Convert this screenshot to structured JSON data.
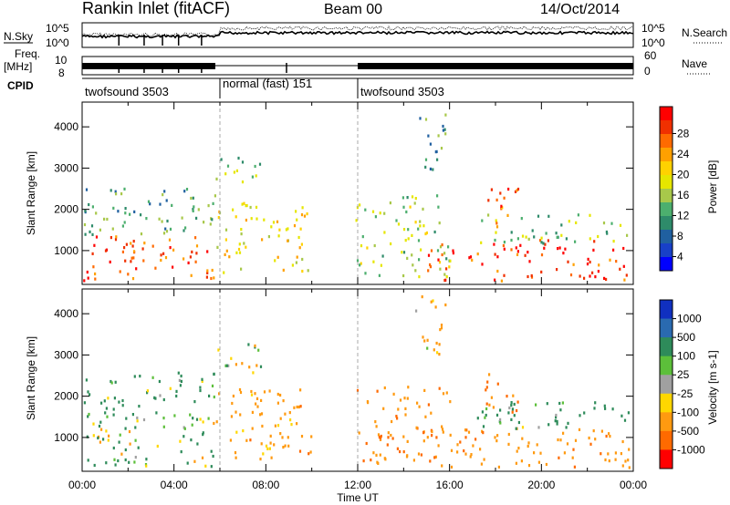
{
  "header": {
    "title": "Rankin Inlet (fitACF)",
    "beam": "Beam 00",
    "date": "14/Oct/2014"
  },
  "status_panel": {
    "left_labels": {
      "nsky": "N.Sky",
      "freq": "Freq.",
      "mhz": "[MHz]",
      "cpid": "CPID"
    },
    "right_labels": {
      "nsearch": "N.Search",
      "nave": "Nave"
    },
    "noise_ticks": [
      "10^5",
      "10^0"
    ],
    "freq_ticks": [
      "10",
      "8"
    ],
    "nave_ticks": [
      "60",
      "0"
    ],
    "noise_right_ticks": [
      "10^5",
      "10^0"
    ],
    "cpid_segments": [
      {
        "label": "twofsound 3503",
        "start": 0,
        "end": 6
      },
      {
        "label": "normal (fast) 151",
        "start": 6,
        "end": 12
      },
      {
        "label": "twofsound 3503",
        "start": 12,
        "end": 24
      }
    ]
  },
  "x_axis": {
    "label": "Time UT",
    "ticks": [
      "00:00",
      "04:00",
      "08:00",
      "12:00",
      "16:00",
      "20:00",
      "00:00"
    ]
  },
  "chart_data": [
    {
      "type": "heatmap",
      "title": "",
      "xlabel": "Time UT",
      "ylabel": "Slant Range [km]",
      "xlim": [
        0,
        24
      ],
      "ylim": [
        180,
        4600
      ],
      "yticks": [
        "1000",
        "2000",
        "3000",
        "4000"
      ],
      "colorbar": {
        "label": "Power [dB]",
        "ticks": [
          "28",
          "24",
          "20",
          "16",
          "12",
          "8",
          "4"
        ],
        "colors": [
          "#ff0000",
          "#f03000",
          "#ff6a00",
          "#ffa000",
          "#ffd200",
          "#e6e600",
          "#a8c84a",
          "#4caf6e",
          "#2e8b6a",
          "#2060a0",
          "#1840c8",
          "#0000ff"
        ]
      },
      "regions": [
        {
          "t0": 0.0,
          "t1": 5.8,
          "r0": 300,
          "r1": 1400,
          "level": 26
        },
        {
          "t0": 0.0,
          "t1": 5.8,
          "r0": 1400,
          "r1": 2600,
          "level": 10
        },
        {
          "t0": 5.8,
          "t1": 10.0,
          "r0": 500,
          "r1": 2200,
          "level": 18
        },
        {
          "t0": 5.8,
          "t1": 7.8,
          "r0": 2600,
          "r1": 3300,
          "level": 12
        },
        {
          "t0": 11.9,
          "t1": 16.0,
          "r0": 400,
          "r1": 2400,
          "level": 14
        },
        {
          "t0": 14.5,
          "t1": 15.8,
          "r0": 3000,
          "r1": 4500,
          "level": 10
        },
        {
          "t0": 15.0,
          "t1": 23.8,
          "r0": 300,
          "r1": 1300,
          "level": 27
        },
        {
          "t0": 17.0,
          "t1": 23.8,
          "r0": 1200,
          "r1": 1900,
          "level": 12
        },
        {
          "t0": 17.5,
          "t1": 19.0,
          "r0": 1600,
          "r1": 2600,
          "level": 25
        }
      ]
    },
    {
      "type": "heatmap",
      "title": "",
      "xlabel": "Time UT",
      "ylabel": "Slant Range [km]",
      "xlim": [
        0,
        24
      ],
      "ylim": [
        180,
        4600
      ],
      "yticks": [
        "1000",
        "2000",
        "3000",
        "4000"
      ],
      "colorbar": {
        "label": "Velocity [m s-1]",
        "ticks": [
          "1000",
          "500",
          "100",
          "25",
          "-25",
          "-100",
          "-500",
          "-1000"
        ],
        "colors": [
          "#1030c0",
          "#2a6ab0",
          "#2e8b5a",
          "#5cbf3a",
          "#a0a0a0",
          "#ffd700",
          "#ff9a10",
          "#ff6a00",
          "#ff0000"
        ]
      },
      "regions": [
        {
          "t0": 0.0,
          "t1": 5.8,
          "r0": 300,
          "r1": 1400,
          "level": 50
        },
        {
          "t0": 0.0,
          "t1": 5.8,
          "r0": 1400,
          "r1": 2600,
          "level": 150
        },
        {
          "t0": 5.8,
          "t1": 10.0,
          "r0": 500,
          "r1": 2200,
          "level": -300
        },
        {
          "t0": 5.8,
          "t1": 7.8,
          "r0": 2600,
          "r1": 3300,
          "level": -100
        },
        {
          "t0": 11.9,
          "t1": 16.0,
          "r0": 400,
          "r1": 2400,
          "level": -400
        },
        {
          "t0": 14.5,
          "t1": 15.8,
          "r0": 3000,
          "r1": 4500,
          "level": -200
        },
        {
          "t0": 15.0,
          "t1": 23.8,
          "r0": 300,
          "r1": 1300,
          "level": -350
        },
        {
          "t0": 17.0,
          "t1": 23.8,
          "r0": 1200,
          "r1": 1900,
          "level": 200
        },
        {
          "t0": 17.5,
          "t1": 19.0,
          "r0": 1600,
          "r1": 2600,
          "level": -600
        }
      ]
    }
  ]
}
